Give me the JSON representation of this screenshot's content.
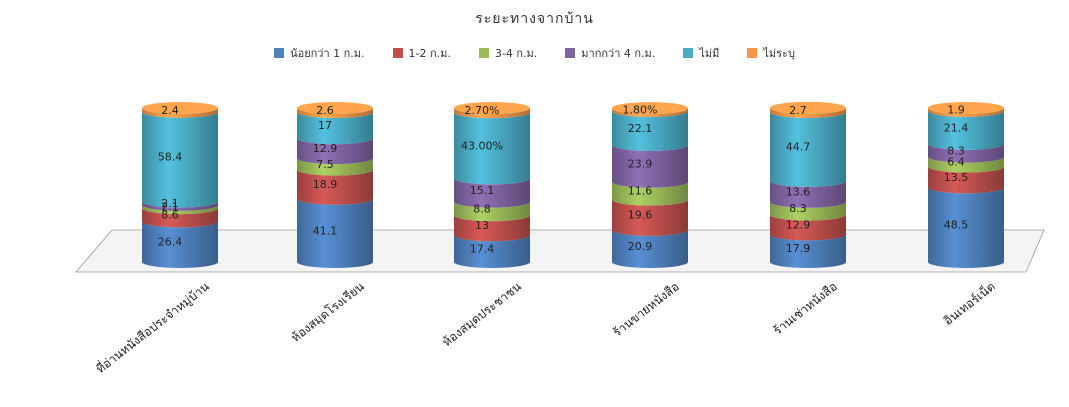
{
  "chart_data": {
    "type": "bar",
    "stacked": true,
    "shape": "cylinder",
    "title": "ระยะทางจากบ้าน",
    "legend_position": "top",
    "categories": [
      "ที่อ่านหนังสือประจำหมู่บ้าน",
      "ห้องสมุดโรงเรียน",
      "ห้องสมุดประชาชน",
      "ร้านขายหนังสือ",
      "ร้านเช่าหนังสือ",
      "อินเทอร์เน็ต"
    ],
    "series": [
      {
        "name": "น้อยกว่า 1 ก.ม.",
        "color": "#4f81bd",
        "values": [
          26.4,
          41.1,
          17.4,
          20.9,
          17.9,
          48.5
        ],
        "labels": [
          "26.4",
          "41.1",
          "17.4",
          "20.9",
          "17.9",
          "48.5"
        ]
      },
      {
        "name": "1-2 ก.ม.",
        "color": "#c0504d",
        "values": [
          8.6,
          18.9,
          13,
          19.6,
          12.9,
          13.5
        ],
        "labels": [
          "8.6",
          "18.9",
          "13",
          "19.6",
          "12.9",
          "13.5"
        ]
      },
      {
        "name": "3-4 ก.ม.",
        "color": "#9bbb59",
        "values": [
          2.1,
          7.5,
          8.8,
          11.6,
          8.3,
          6.4
        ],
        "labels": [
          "2.1",
          "7.5",
          "8.8",
          "11.6",
          "8.3",
          "6.4"
        ]
      },
      {
        "name": "มากกว่า 4 ก.ม.",
        "color": "#8064a2",
        "values": [
          2.1,
          12.9,
          15.1,
          23.9,
          13.6,
          8.3
        ],
        "labels": [
          "2.1",
          "12.9",
          "15.1",
          "23.9",
          "13.6",
          "8.3"
        ]
      },
      {
        "name": "ไม่มี",
        "color": "#4bacc6",
        "values": [
          58.4,
          17,
          43.0,
          22.1,
          44.7,
          21.4
        ],
        "labels": [
          "58.4",
          "17",
          "43.00%",
          "22.1",
          "44.7",
          "21.4"
        ]
      },
      {
        "name": "ไม่ระบุ",
        "color": "#f79646",
        "values": [
          2.4,
          2.6,
          2.7,
          1.8,
          2.7,
          1.9
        ],
        "labels": [
          "2.4",
          "2.6",
          "2.70%",
          "1.80%",
          "2.7",
          "1.9"
        ]
      }
    ]
  }
}
